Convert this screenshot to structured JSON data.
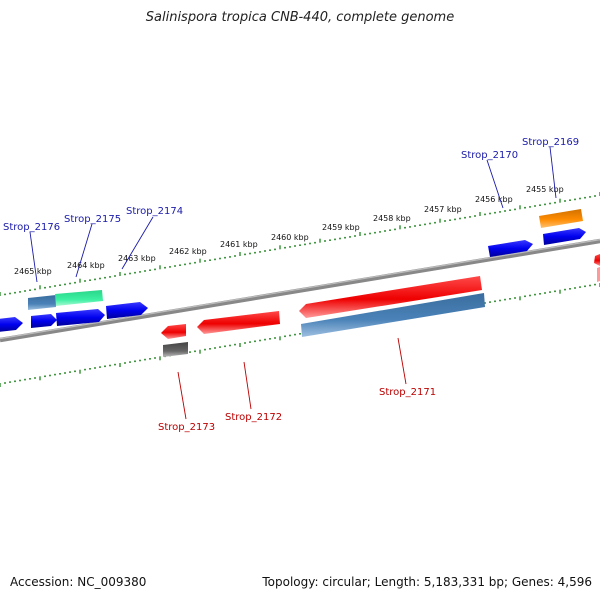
{
  "title": "Salinispora tropica CNB-440, complete genome",
  "accession": "Accession: NC_009380",
  "summary": "Topology: circular; Length: 5,183,331 bp; Genes: 4,596",
  "colors": {
    "backbone": "#888888",
    "tick": "#2e8b2e",
    "forward_gene": "#0000ee",
    "reverse_gene": "#ee0000",
    "forward_label": "#1a1aaa",
    "reverse_label": "#bb0000"
  },
  "scale_labels": [
    "2465 kbp",
    "2464 kbp",
    "2463 kbp",
    "2462 kbp",
    "2461 kbp",
    "2460 kbp",
    "2459 kbp",
    "2458 kbp",
    "2457 kbp",
    "2456 kbp",
    "2455 kbp"
  ],
  "gene_labels": {
    "strop_2176": "Strop_2176",
    "strop_2175": "Strop_2175",
    "strop_2174": "Strop_2174",
    "strop_2170": "Strop_2170",
    "strop_2169": "Strop_2169",
    "strop_2173": "Strop_2173",
    "strop_2172": "Strop_2172",
    "strop_2171": "Strop_2171"
  }
}
